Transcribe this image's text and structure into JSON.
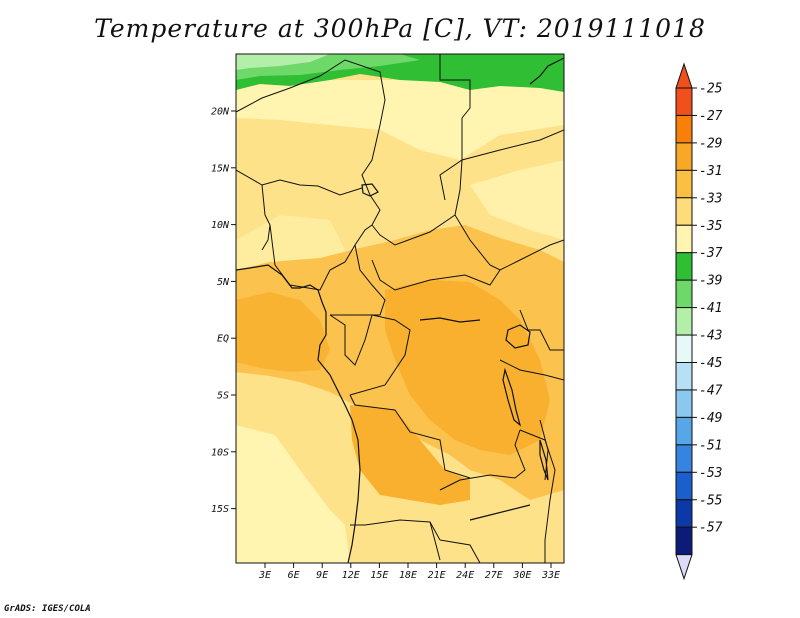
{
  "title": "Temperature at 300hPa [C], VT: 2019111018",
  "credit": "GrADS: IGES/COLA",
  "lat_labels": [
    "20N",
    "15N",
    "10N",
    "5N",
    "EQ",
    "5S",
    "10S",
    "15S"
  ],
  "lon_labels": [
    "3E",
    "6E",
    "9E",
    "12E",
    "15E",
    "18E",
    "21E",
    "24E",
    "27E",
    "30E",
    "33E"
  ],
  "colorbar": {
    "labels": [
      "-25",
      "-27",
      "-29",
      "-31",
      "-33",
      "-35",
      "-37",
      "-39",
      "-41",
      "-43",
      "-45",
      "-47",
      "-49",
      "-51",
      "-53",
      "-55",
      "-57"
    ],
    "colors": [
      "#f0501e",
      "#f77f0a",
      "#f8a826",
      "#fbbf42",
      "#fddc7c",
      "#fff5b0",
      "#2fbe34",
      "#6ed868",
      "#b4efaa",
      "#e6f8f8",
      "#b7dff6",
      "#8ac8f0",
      "#56a6e8",
      "#3585e0",
      "#1b5fcc",
      "#0d39a8",
      "#0c1a78"
    ],
    "top_arrow_color": "#f0501e",
    "bottom_arrow_color": "#dcdcf8"
  },
  "map_colors": {
    "band_31_33": "#fde28a",
    "band_29_31": "#fbc24e",
    "band_27_29": "#f8b02e",
    "band_33_35": "#fff5b0",
    "green_dark": "#2fbe34",
    "green_mid": "#6ed868",
    "green_light": "#b4efaa"
  }
}
